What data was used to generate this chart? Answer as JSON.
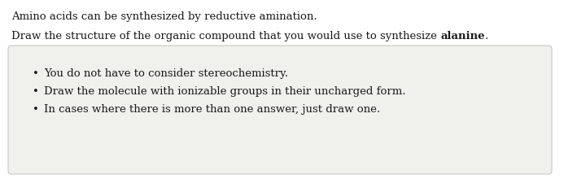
{
  "line1": "Amino acids can be synthesized by reductive amination.",
  "line2_prefix": "Draw the structure of the organic compound that you would use to synthesize ",
  "line2_bold": "alanine",
  "line2_suffix": ".",
  "bullets": [
    "You do not have to consider stereochemistry.",
    "Draw the molecule with ionizable groups in their uncharged form.",
    "In cases where there is more than one answer, just draw one."
  ],
  "bg_color": "#ffffff",
  "box_bg_color": "#f0f0ed",
  "box_border_color": "#c8c8c8",
  "text_color": "#1a1a1a",
  "font_size": 9.5,
  "bullet_font_size": 9.5,
  "font_family": "DejaVu Serif"
}
